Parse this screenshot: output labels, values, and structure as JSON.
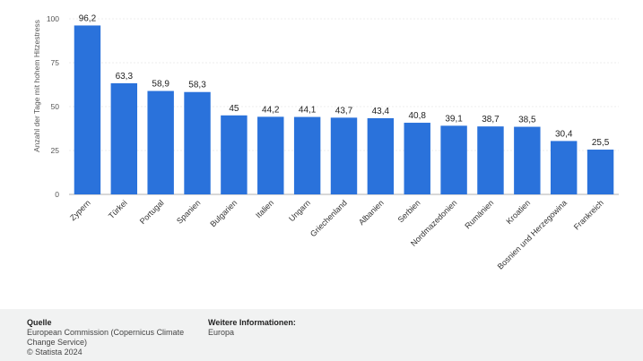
{
  "chart_data": {
    "type": "bar",
    "ylabel": "Anzahl der Tage mit hohem Hitzestress",
    "ylim": [
      0,
      100
    ],
    "yticks": [
      0,
      25,
      50,
      75,
      100
    ],
    "categories": [
      "Zypern",
      "Türkei",
      "Portugal",
      "Spanien",
      "Bulgarien",
      "Italien",
      "Ungarn",
      "Griechenland",
      "Albanien",
      "Serbien",
      "Nordmazedonien",
      "Rumänien",
      "Kroatien",
      "Bosnien und Herzegowina",
      "Frankreich"
    ],
    "values": [
      96.2,
      63.3,
      58.9,
      58.3,
      45,
      44.2,
      44.1,
      43.7,
      43.4,
      40.8,
      39.1,
      38.7,
      38.5,
      30.4,
      25.5
    ],
    "value_labels": [
      "96,2",
      "63,3",
      "58,9",
      "58,3",
      "45",
      "44,2",
      "44,1",
      "43,7",
      "43,4",
      "40,8",
      "39,1",
      "38,7",
      "38,5",
      "30,4",
      "25,5"
    ],
    "bar_color": "#2a72db",
    "grid": true
  },
  "footer": {
    "source_heading": "Quelle",
    "source_text": "European Commission (Copernicus Climate Change Service)",
    "copyright": "© Statista 2024",
    "info_heading": "Weitere Informationen:",
    "info_text": "Europa"
  }
}
